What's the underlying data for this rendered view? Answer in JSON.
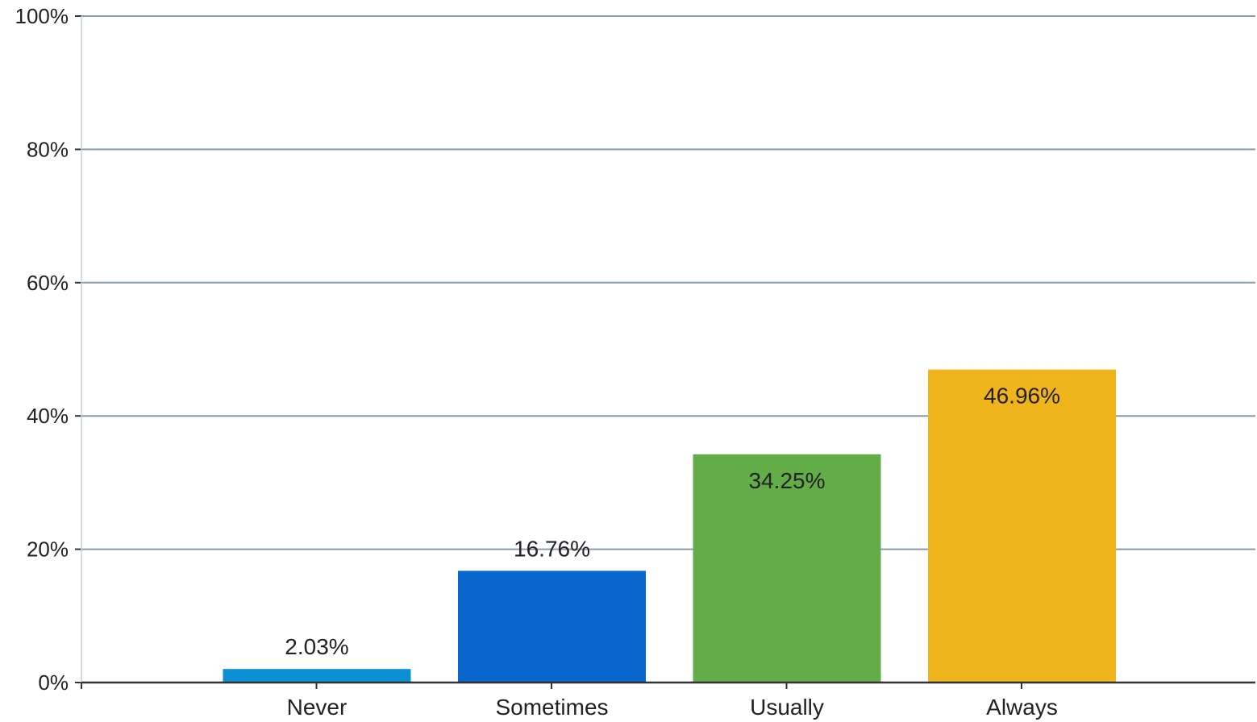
{
  "chart_data": {
    "type": "bar",
    "categories": [
      "Never",
      "Sometimes",
      "Usually",
      "Always"
    ],
    "values": [
      2.03,
      16.76,
      34.25,
      46.96
    ],
    "data_labels": [
      "2.03%",
      "16.76%",
      "34.25%",
      "46.96%"
    ],
    "colors": [
      "#0a8fd4",
      "#0866cc",
      "#62ad47",
      "#f0b41d"
    ],
    "ylim": [
      0,
      100
    ],
    "yticks": [
      0,
      20,
      40,
      60,
      80,
      100
    ],
    "ytick_labels": [
      "0%",
      "20%",
      "40%",
      "60%",
      "80%",
      "100%"
    ],
    "grid": true,
    "gridline_color": "#8a9bab",
    "title": "",
    "xlabel": "",
    "ylabel": ""
  }
}
